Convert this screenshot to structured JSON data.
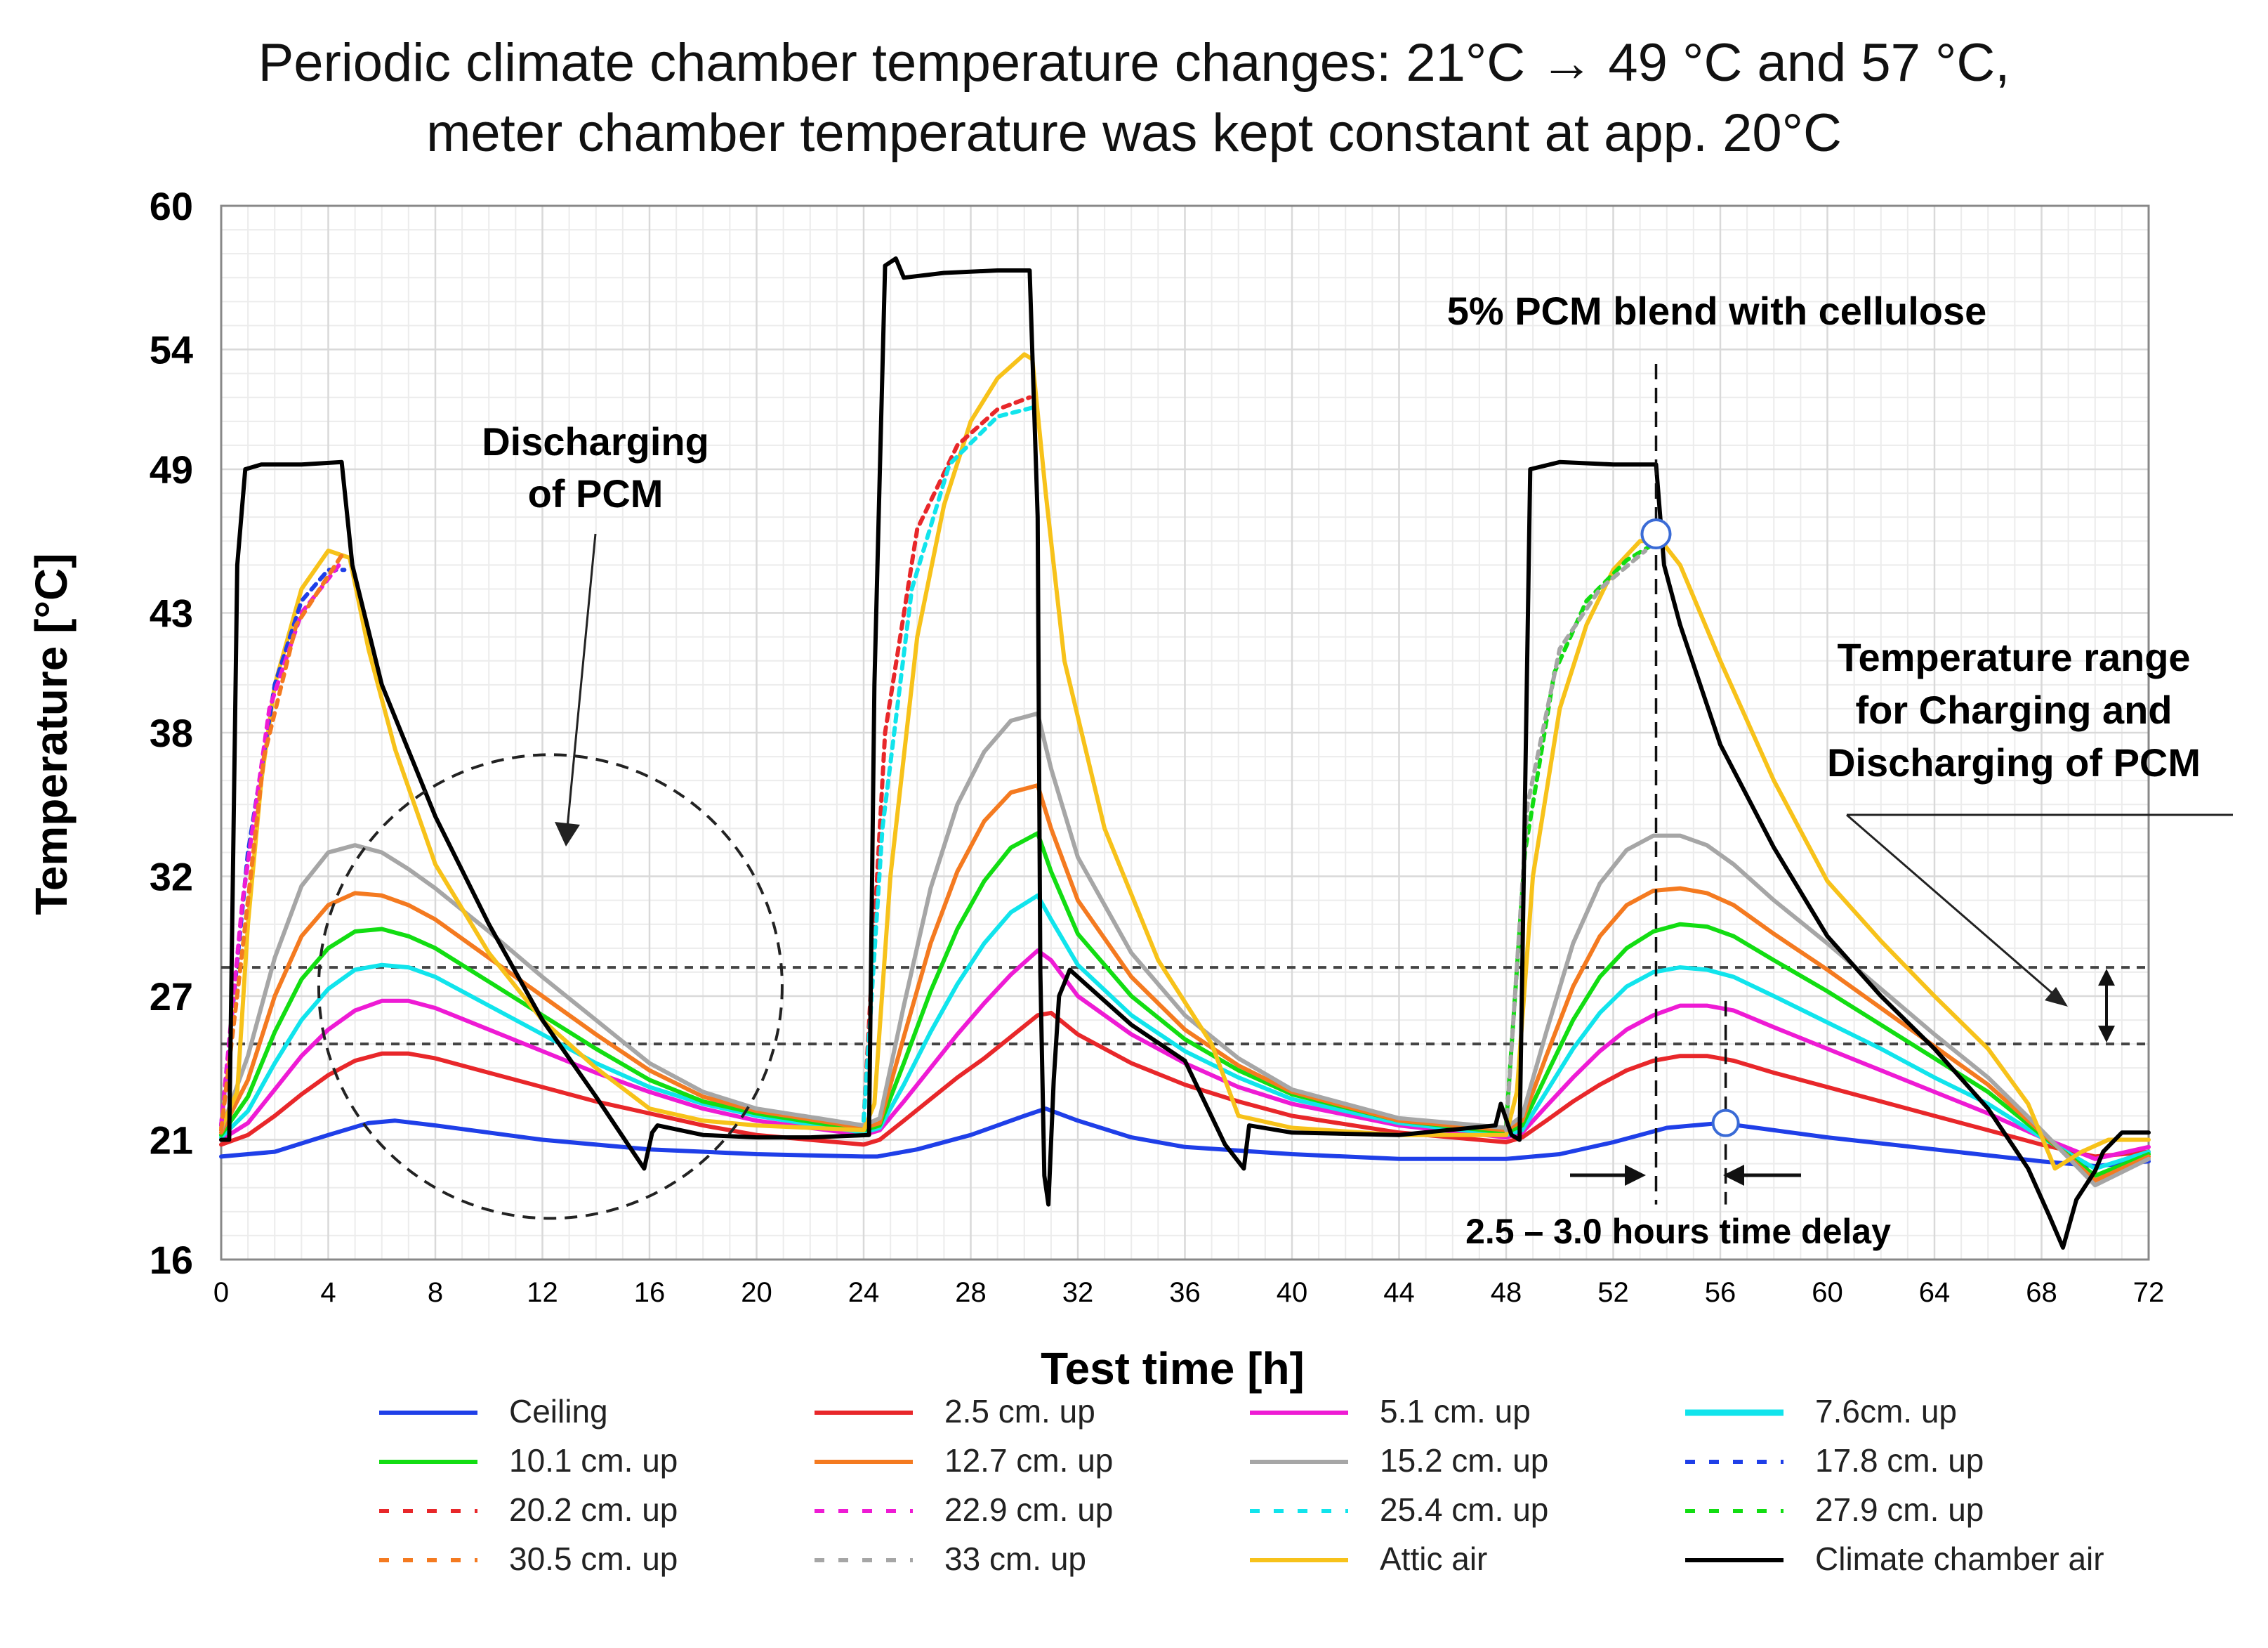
{
  "chart_data": {
    "type": "line",
    "title_line1": "Periodic climate chamber temperature changes: 21°C → 49 °C and 57 °C,",
    "title_line2": "meter chamber temperature was kept constant at app. 20°C",
    "xlabel": "Test time [h]",
    "ylabel": "Temperature [°C]",
    "xlim": [
      0,
      72
    ],
    "ylim": [
      16,
      60
    ],
    "x_ticks": [
      0,
      4,
      8,
      12,
      16,
      20,
      24,
      28,
      32,
      36,
      40,
      44,
      48,
      52,
      56,
      60,
      64,
      68,
      72
    ],
    "y_ticks": [
      16,
      21,
      27,
      32,
      38,
      43,
      49,
      54,
      60
    ],
    "grid": true,
    "legend_position": "bottom",
    "annotations": {
      "pcm_blend": "5% PCM blend with cellulose",
      "discharging_line1": "Discharging",
      "discharging_line2": "of PCM",
      "range_line1": "Temperature range",
      "range_line2": "for Charging and",
      "range_line3": "Discharging of PCM",
      "time_delay": "2.5 – 3.0 hours time delay"
    },
    "pcm_range_lines": [
      25,
      28.2
    ],
    "series": [
      {
        "name": "Climate chamber air",
        "color": "#000000",
        "dashed": false,
        "x": [
          0,
          0.3,
          0.6,
          0.9,
          1.5,
          3,
          4.5,
          4.9,
          6,
          8,
          10,
          12,
          14,
          15.2,
          15.8,
          16.1,
          16.3,
          18,
          20,
          22,
          24.2,
          24.4,
          24.8,
          25.2,
          25.5,
          27,
          29,
          30.2,
          30.5,
          30.6,
          30.75,
          30.9,
          31.1,
          31.3,
          31.7,
          32.3,
          34,
          36,
          37.5,
          38.2,
          38.4,
          40,
          44,
          47.6,
          47.8,
          48.2,
          48.5,
          48.9,
          50,
          52,
          53.6,
          53.9,
          54.5,
          56,
          58,
          60,
          62,
          64,
          66,
          67.5,
          68.3,
          68.8,
          69.3,
          70,
          70.3,
          71,
          72
        ],
        "values": [
          21,
          21,
          45,
          49,
          49.2,
          49.2,
          49.3,
          45,
          40,
          34.5,
          30,
          26,
          22.8,
          20.8,
          19.8,
          21.3,
          21.6,
          21.2,
          21.1,
          21.1,
          21.2,
          40,
          57.5,
          57.8,
          57,
          57.2,
          57.3,
          57.3,
          47,
          28,
          19.5,
          18.3,
          23.5,
          27,
          28.1,
          27.5,
          25.8,
          24.3,
          20.8,
          19.8,
          21.6,
          21.3,
          21.2,
          21.6,
          22.5,
          21.2,
          21,
          49,
          49.3,
          49.2,
          49.2,
          45,
          42.5,
          37.5,
          33.2,
          29.5,
          27,
          24.8,
          22.3,
          19.8,
          17.8,
          16.5,
          18.5,
          19.7,
          20.5,
          21.3,
          21.3
        ]
      },
      {
        "name": "Ceiling",
        "color": "#1f3fe8",
        "dashed": false,
        "x": [
          0,
          2,
          4,
          5.5,
          6.5,
          8,
          12,
          16,
          20,
          24,
          24.5,
          26,
          28,
          30,
          30.8,
          32,
          34,
          36,
          40,
          44,
          48,
          50,
          52,
          54,
          56,
          58,
          60,
          64,
          68,
          70,
          72
        ],
        "values": [
          20.3,
          20.5,
          21.2,
          21.7,
          21.8,
          21.6,
          21,
          20.6,
          20.4,
          20.3,
          20.3,
          20.6,
          21.2,
          22,
          22.3,
          21.8,
          21.1,
          20.7,
          20.4,
          20.2,
          20.2,
          20.4,
          20.9,
          21.5,
          21.7,
          21.4,
          21.1,
          20.6,
          20.1,
          19.9,
          20.1
        ]
      },
      {
        "name": "2.5 cm. up",
        "color": "#e8272a",
        "dashed": false,
        "x": [
          0,
          1,
          2,
          3,
          4,
          5,
          6,
          7,
          8,
          10,
          12,
          14,
          16,
          18,
          20,
          24,
          24.6,
          25.5,
          26.5,
          27.5,
          28.5,
          29.5,
          30.5,
          31,
          32,
          34,
          36,
          38,
          40,
          44,
          48,
          48.6,
          49.5,
          50.5,
          51.5,
          52.5,
          53.5,
          54.5,
          55.5,
          56.5,
          58,
          60,
          62,
          64,
          66,
          68,
          70,
          72
        ],
        "values": [
          20.8,
          21.2,
          22,
          22.9,
          23.7,
          24.3,
          24.6,
          24.6,
          24.4,
          23.8,
          23.2,
          22.6,
          22.1,
          21.6,
          21.2,
          20.8,
          21,
          21.8,
          22.7,
          23.6,
          24.4,
          25.3,
          26.2,
          26.3,
          25.4,
          24.2,
          23.3,
          22.6,
          22,
          21.3,
          20.9,
          21.1,
          21.8,
          22.6,
          23.3,
          23.9,
          24.3,
          24.5,
          24.5,
          24.3,
          23.8,
          23.2,
          22.6,
          22,
          21.4,
          20.8,
          20.3,
          20.5
        ]
      },
      {
        "name": "5.1 cm. up",
        "color": "#ee1bd4",
        "dashed": false,
        "x": [
          0,
          1,
          2,
          3,
          4,
          5,
          6,
          7,
          8,
          10,
          12,
          14,
          16,
          18,
          20,
          24,
          24.6,
          25.5,
          26.5,
          27.5,
          28.5,
          29.5,
          30.5,
          31,
          32,
          34,
          36,
          38,
          40,
          44,
          48,
          48.6,
          49.5,
          50.5,
          51.5,
          52.5,
          53.5,
          54.5,
          55.5,
          56.5,
          58,
          60,
          62,
          64,
          66,
          68,
          70,
          72
        ],
        "values": [
          21,
          21.7,
          23.1,
          24.5,
          25.6,
          26.4,
          26.8,
          26.8,
          26.5,
          25.6,
          24.7,
          23.8,
          23,
          22.3,
          21.8,
          21.2,
          21.4,
          22.6,
          24,
          25.4,
          26.7,
          27.9,
          28.9,
          28.5,
          27,
          25.4,
          24.2,
          23.2,
          22.5,
          21.6,
          21.1,
          21.3,
          22.4,
          23.6,
          24.7,
          25.6,
          26.2,
          26.6,
          26.6,
          26.4,
          25.7,
          24.8,
          23.9,
          23,
          22.1,
          21.1,
          20.2,
          20.7
        ]
      },
      {
        "name": "7.6cm. up",
        "color": "#11e4ec",
        "dashed": false,
        "x": [
          0,
          1,
          2,
          3,
          4,
          5,
          6,
          7,
          8,
          10,
          12,
          14,
          16,
          18,
          20,
          24,
          24.6,
          25.5,
          26.5,
          27.5,
          28.5,
          29.5,
          30.5,
          31,
          32,
          34,
          36,
          38,
          40,
          44,
          48,
          48.6,
          49.5,
          50.5,
          51.5,
          52.5,
          53.5,
          54.5,
          55.5,
          56.5,
          58,
          60,
          62,
          64,
          66,
          68,
          70,
          72
        ],
        "values": [
          21.1,
          22.2,
          24.2,
          26,
          27.3,
          28.1,
          28.3,
          28.2,
          27.8,
          26.6,
          25.4,
          24.2,
          23.2,
          22.5,
          22,
          21.3,
          21.5,
          23.3,
          25.5,
          27.5,
          29.2,
          30.5,
          31.2,
          30.2,
          28.3,
          26.2,
          24.7,
          23.6,
          22.7,
          21.7,
          21.2,
          21.4,
          23,
          24.8,
          26.3,
          27.4,
          28,
          28.2,
          28.1,
          27.8,
          27,
          25.9,
          24.8,
          23.6,
          22.5,
          21.1,
          19.8,
          20.5
        ]
      },
      {
        "name": "10.1 cm. up",
        "color": "#12dd12",
        "dashed": false,
        "x": [
          0,
          1,
          2,
          3,
          4,
          5,
          6,
          7,
          8,
          10,
          12,
          14,
          16,
          18,
          20,
          24,
          24.6,
          25.5,
          26.5,
          27.5,
          28.5,
          29.5,
          30.5,
          31,
          32,
          34,
          36,
          38,
          40,
          44,
          48,
          48.6,
          49.5,
          50.5,
          51.5,
          52.5,
          53.5,
          54.5,
          55.5,
          56.5,
          58,
          60,
          62,
          64,
          66,
          68,
          70,
          72
        ],
        "values": [
          21.2,
          22.8,
          25.5,
          27.7,
          29,
          29.7,
          29.8,
          29.5,
          29,
          27.6,
          26.2,
          24.8,
          23.5,
          22.6,
          22.1,
          21.4,
          21.6,
          24.2,
          27.2,
          29.8,
          31.8,
          33.2,
          33.8,
          32.2,
          29.6,
          27,
          25.2,
          23.9,
          22.9,
          21.8,
          21.3,
          21.6,
          23.7,
          26,
          27.8,
          29,
          29.7,
          30,
          29.9,
          29.5,
          28.5,
          27.2,
          25.8,
          24.4,
          23,
          21.2,
          19.5,
          20.4
        ]
      },
      {
        "name": "12.7 cm. up",
        "color": "#f47a20",
        "dashed": false,
        "x": [
          0,
          1,
          2,
          3,
          4,
          5,
          6,
          7,
          8,
          10,
          12,
          14,
          16,
          18,
          20,
          24,
          24.6,
          25.5,
          26.5,
          27.5,
          28.5,
          29.5,
          30.5,
          31,
          32,
          34,
          36,
          38,
          40,
          44,
          48,
          48.6,
          49.5,
          50.5,
          51.5,
          52.5,
          53.5,
          54.5,
          55.5,
          56.5,
          58,
          60,
          62,
          64,
          66,
          68,
          70,
          72
        ],
        "values": [
          21.3,
          23.5,
          27,
          29.5,
          30.8,
          31.3,
          31.2,
          30.8,
          30.2,
          28.6,
          27,
          25.4,
          23.9,
          22.8,
          22.2,
          21.5,
          21.7,
          25.3,
          29.2,
          32.2,
          34.3,
          35.5,
          35.8,
          34,
          31,
          27.8,
          25.6,
          24.1,
          23,
          21.8,
          21.4,
          21.8,
          24.5,
          27.4,
          29.5,
          30.8,
          31.4,
          31.5,
          31.3,
          30.8,
          29.6,
          28.1,
          26.5,
          24.9,
          23.3,
          21.3,
          19.3,
          20.3
        ]
      },
      {
        "name": "15.2 cm. up",
        "color": "#a6a6a6",
        "dashed": false,
        "x": [
          0,
          1,
          2,
          3,
          4,
          5,
          6,
          7,
          8,
          10,
          12,
          14,
          16,
          18,
          20,
          24,
          24.6,
          25.5,
          26.5,
          27.5,
          28.5,
          29.5,
          30.5,
          31,
          32,
          34,
          36,
          38,
          40,
          44,
          48,
          48.6,
          49.5,
          50.5,
          51.5,
          52.5,
          53.5,
          54.5,
          55.5,
          56.5,
          58,
          60,
          62,
          64,
          66,
          68,
          70,
          72
        ],
        "values": [
          21.4,
          24.5,
          28.6,
          31.6,
          33,
          33.3,
          33,
          32.3,
          31.5,
          29.7,
          27.8,
          26,
          24.2,
          23,
          22.3,
          21.6,
          21.9,
          26.6,
          31.5,
          35,
          37.2,
          38.5,
          38.8,
          36.5,
          32.8,
          28.8,
          26.2,
          24.4,
          23.1,
          21.9,
          21.5,
          22,
          25.5,
          29.2,
          31.7,
          33.1,
          33.7,
          33.7,
          33.3,
          32.5,
          31,
          29.2,
          27.3,
          25.4,
          23.6,
          21.4,
          19.1,
          20.2
        ]
      },
      {
        "name": "Attic air",
        "color": "#f7c21a",
        "dashed": false,
        "x": [
          0,
          0.6,
          1,
          1.5,
          2,
          3,
          4,
          4.8,
          5.5,
          6.5,
          8,
          10,
          12,
          14,
          16,
          18,
          20,
          24,
          24.4,
          25,
          26,
          27,
          28,
          29,
          30,
          30.3,
          30.8,
          31.5,
          33,
          35,
          37,
          38,
          40,
          44,
          48,
          48.4,
          49,
          50,
          51,
          52,
          53,
          53.8,
          54.5,
          56,
          58,
          60,
          62,
          64,
          66,
          67.5,
          68.5,
          69.5,
          70.5,
          72
        ],
        "values": [
          21.5,
          23,
          30,
          36,
          40,
          44,
          45.6,
          45.3,
          41.5,
          37.3,
          32.5,
          28.8,
          26,
          24,
          22.3,
          21.8,
          21.6,
          21.4,
          22.5,
          32,
          42,
          47.5,
          51,
          52.8,
          53.8,
          53.6,
          48,
          41,
          34,
          28.5,
          25,
          22,
          21.5,
          21.2,
          21.2,
          23,
          32,
          39,
          42.5,
          44.8,
          46,
          46,
          45,
          41,
          36,
          31.8,
          29.3,
          27,
          24.8,
          22.5,
          19.8,
          20.5,
          21,
          21
        ]
      },
      {
        "name": "17.8 cm. up",
        "color": "#1f3fe8",
        "dashed": true,
        "x": [
          0,
          1,
          2,
          3,
          4,
          4.6
        ],
        "values": [
          21.6,
          33,
          40,
          43.5,
          44.8,
          44.8
        ]
      },
      {
        "name": "20.2 cm. up",
        "color": "#e8272a",
        "dashed": true,
        "x": [
          24,
          24.8,
          26,
          27.5,
          29,
          30.2
        ],
        "values": [
          21.8,
          38,
          46.5,
          50,
          51.5,
          52
        ]
      },
      {
        "name": "22.9 cm. up",
        "color": "#ee1bd4",
        "dashed": true,
        "x": [
          0,
          0.8,
          1.8,
          3,
          4.4
        ],
        "values": [
          21.6,
          31,
          39,
          43,
          45
        ]
      },
      {
        "name": "25.4 cm. up",
        "color": "#11e4ec",
        "dashed": true,
        "x": [
          24,
          24.7,
          25.8,
          27.2,
          29,
          30.4
        ],
        "values": [
          21.8,
          34,
          44,
          49.2,
          51.2,
          51.6
        ]
      },
      {
        "name": "27.9 cm. up",
        "color": "#12dd12",
        "dashed": true,
        "x": [
          48,
          48.7,
          49.8,
          51,
          52.5,
          53.4
        ],
        "values": [
          21.6,
          33,
          40.5,
          43.5,
          45.2,
          45.8
        ]
      },
      {
        "name": "30.5 cm. up",
        "color": "#f47a20",
        "dashed": true,
        "x": [
          0,
          0.7,
          1.6,
          2.8,
          4.5
        ],
        "values": [
          21.4,
          28,
          37,
          42.5,
          45.4
        ]
      },
      {
        "name": "33 cm. up",
        "color": "#a6a6a6",
        "dashed": true,
        "x": [
          48,
          48.8,
          50,
          51.5,
          53.2
        ],
        "values": [
          21.4,
          35,
          41.5,
          44,
          45.6
        ]
      }
    ],
    "legend": {
      "columns": [
        [
          "Ceiling",
          "10.1 cm. up",
          "20.2 cm. up",
          "30.5 cm. up"
        ],
        [
          "2.5 cm. up",
          "12.7 cm. up",
          "22.9 cm. up",
          "33 cm. up"
        ],
        [
          "5.1 cm. up",
          "15.2 cm. up",
          "25.4 cm. up",
          "Attic air"
        ],
        [
          "7.6cm. up",
          "17.8 cm. up",
          "27.9 cm. up",
          "Climate chamber air"
        ]
      ]
    }
  }
}
